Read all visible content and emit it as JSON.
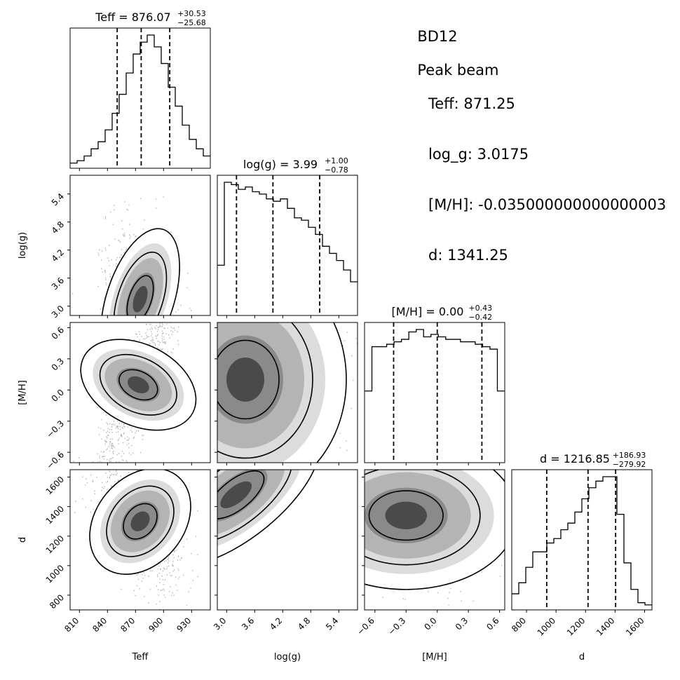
{
  "info": {
    "object": "BD12",
    "heading": "Peak beam",
    "lines": [
      "Teff: 871.25",
      "log_g: 3.0175",
      "[M/H]: -0.035000000000000003",
      "d: 1341.25"
    ]
  },
  "chart_data": {
    "type": "corner",
    "parameters": [
      {
        "name": "Teff",
        "label": "Teff",
        "range": [
          800,
          950
        ],
        "ticks": [
          810,
          840,
          870,
          900,
          930
        ],
        "median": 876.07,
        "plus": 30.53,
        "minus": 25.68,
        "title_main": "Teff = 876.07",
        "title_sup": "+30.53",
        "title_sub": "−25.68",
        "quantile_lines": [
          850.39,
          876.07,
          906.6
        ],
        "histogram": [
          1,
          2,
          4,
          7,
          10,
          15,
          22,
          30,
          39,
          47,
          52,
          55,
          50,
          43,
          33,
          25,
          17,
          11,
          7,
          4
        ]
      },
      {
        "name": "log(g)",
        "label": "log(g)",
        "range": [
          2.8,
          5.8
        ],
        "ticks": [
          3.0,
          3.6,
          4.2,
          4.8,
          5.4
        ],
        "median": 3.99,
        "plus": 1.0,
        "minus": 0.78,
        "title_main": "log(g) = 3.99",
        "title_sub": "−0.78",
        "title_sup": "+1.00",
        "quantile_lines": [
          3.21,
          3.99,
          4.99
        ],
        "histogram": [
          20,
          55,
          54,
          52,
          53,
          51,
          50,
          48,
          47,
          48,
          44,
          40,
          39,
          36,
          33,
          28,
          25,
          22,
          18,
          13
        ]
      },
      {
        "name": "[M/H]",
        "label": "[M/H]",
        "range": [
          -0.7,
          0.65
        ],
        "ticks": [
          -0.6,
          -0.3,
          0.0,
          0.3,
          0.6
        ],
        "median": 0.0,
        "plus": 0.43,
        "minus": 0.42,
        "title_main": "[M/H] = 0.00",
        "title_sup": "+0.43",
        "title_sub": "−0.42",
        "quantile_lines": [
          -0.42,
          0.0,
          0.43
        ],
        "histogram": [
          28,
          46,
          46,
          47,
          48,
          49,
          52,
          53,
          50,
          51,
          50,
          49,
          49,
          48,
          48,
          47,
          46,
          45,
          28
        ]
      },
      {
        "name": "d",
        "label": "d",
        "range": [
          700,
          1650
        ],
        "ticks": [
          800,
          1000,
          1200,
          1400,
          1600
        ],
        "median": 1216.85,
        "plus": 186.93,
        "minus": 279.92,
        "title_main": "d = 1216.85",
        "title_sup": "+186.93",
        "title_sub": "−279.92",
        "quantile_lines": [
          936.93,
          1216.85,
          1403.78
        ],
        "histogram": [
          6,
          11,
          18,
          25,
          25,
          29,
          31,
          35,
          38,
          43,
          49,
          54,
          57,
          59,
          59,
          42,
          20,
          8,
          2,
          1
        ]
      }
    ],
    "joint_peaks": [
      {
        "x": 0,
        "y": 1,
        "peak": [
          875,
          3.15
        ]
      },
      {
        "x": 0,
        "y": 2,
        "peak": [
          873,
          0.05
        ]
      },
      {
        "x": 1,
        "y": 2,
        "peak": [
          3.4,
          0.1
        ]
      },
      {
        "x": 0,
        "y": 3,
        "peak": [
          875,
          1300
        ]
      },
      {
        "x": 1,
        "y": 3,
        "peak": [
          3.2,
          1480
        ]
      },
      {
        "x": 2,
        "y": 3,
        "peak": [
          -0.3,
          1340
        ]
      }
    ]
  }
}
